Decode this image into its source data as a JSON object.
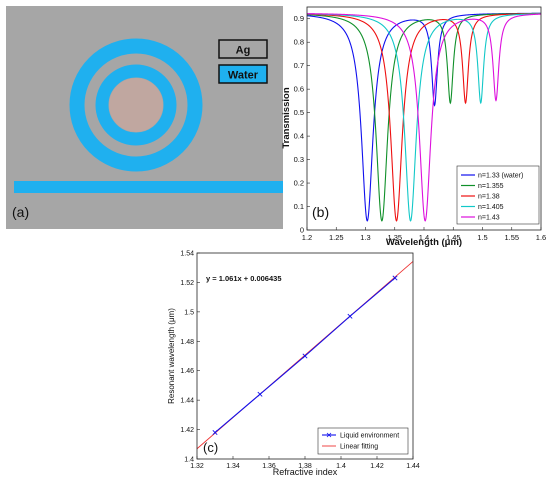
{
  "panel_a": {
    "panel_label": "(a)",
    "legend": [
      {
        "label": "Ag",
        "color": "#a6a6a6"
      },
      {
        "label": "Water",
        "color": "#1fb0ef"
      }
    ],
    "colors": {
      "silver": "#a6a6a6",
      "water": "#1fb0ef",
      "core": "#c0a7a0"
    }
  },
  "chart_data": [
    {
      "type": "line",
      "panel_label": "(b)",
      "xlabel": "Wavelength (μm)",
      "ylabel": "Transmission",
      "xlim": [
        1.2,
        1.6
      ],
      "ylim": [
        0,
        0.95
      ],
      "xticks": [
        1.2,
        1.25,
        1.3,
        1.35,
        1.4,
        1.45,
        1.5,
        1.55,
        1.6
      ],
      "yticks": [
        0,
        0.1,
        0.2,
        0.3,
        0.4,
        0.5,
        0.6,
        0.7,
        0.8,
        0.9
      ],
      "legend_position": "bottom-right",
      "series": [
        {
          "name": "n=1.33 (water)",
          "color": "#1010ee",
          "dip1_center": 1.303,
          "dip1_min": 0.04,
          "dip1_width": 0.012,
          "dip2_center": 1.418,
          "dip2_min": 0.54,
          "dip2_width": 0.006
        },
        {
          "name": "n=1.355",
          "color": "#10902a",
          "dip1_center": 1.328,
          "dip1_min": 0.04,
          "dip1_width": 0.012,
          "dip2_center": 1.445,
          "dip2_min": 0.55,
          "dip2_width": 0.006
        },
        {
          "name": "n=1.38",
          "color": "#ee1010",
          "dip1_center": 1.353,
          "dip1_min": 0.04,
          "dip1_width": 0.012,
          "dip2_center": 1.471,
          "dip2_min": 0.55,
          "dip2_width": 0.006
        },
        {
          "name": "n=1.405",
          "color": "#12c8c8",
          "dip1_center": 1.377,
          "dip1_min": 0.04,
          "dip1_width": 0.012,
          "dip2_center": 1.497,
          "dip2_min": 0.55,
          "dip2_width": 0.006
        },
        {
          "name": "n=1.43",
          "color": "#dd10dd",
          "dip1_center": 1.402,
          "dip1_min": 0.04,
          "dip1_width": 0.012,
          "dip2_center": 1.523,
          "dip2_min": 0.56,
          "dip2_width": 0.006
        }
      ],
      "baseline": 0.925
    },
    {
      "type": "scatter",
      "panel_label": "(c)",
      "xlabel": "Refractive index",
      "ylabel": "Resonant wavelength (μm)",
      "xlim": [
        1.32,
        1.44
      ],
      "ylim": [
        1.4,
        1.54
      ],
      "xticks": [
        1.32,
        1.34,
        1.36,
        1.38,
        1.4,
        1.42,
        1.44
      ],
      "yticks": [
        1.4,
        1.42,
        1.44,
        1.46,
        1.48,
        1.5,
        1.52,
        1.54
      ],
      "annotation": "y = 1.061x + 0.006435",
      "legend_position": "bottom-right",
      "series": [
        {
          "name": "Liquid environment",
          "color": "#1010ee",
          "x": [
            1.33,
            1.355,
            1.38,
            1.405,
            1.43
          ],
          "y": [
            1.418,
            1.444,
            1.47,
            1.497,
            1.523
          ]
        },
        {
          "name": "Linear fitting",
          "color": "#ee3333",
          "slope": 1.061,
          "intercept": 0.006435
        }
      ]
    }
  ]
}
